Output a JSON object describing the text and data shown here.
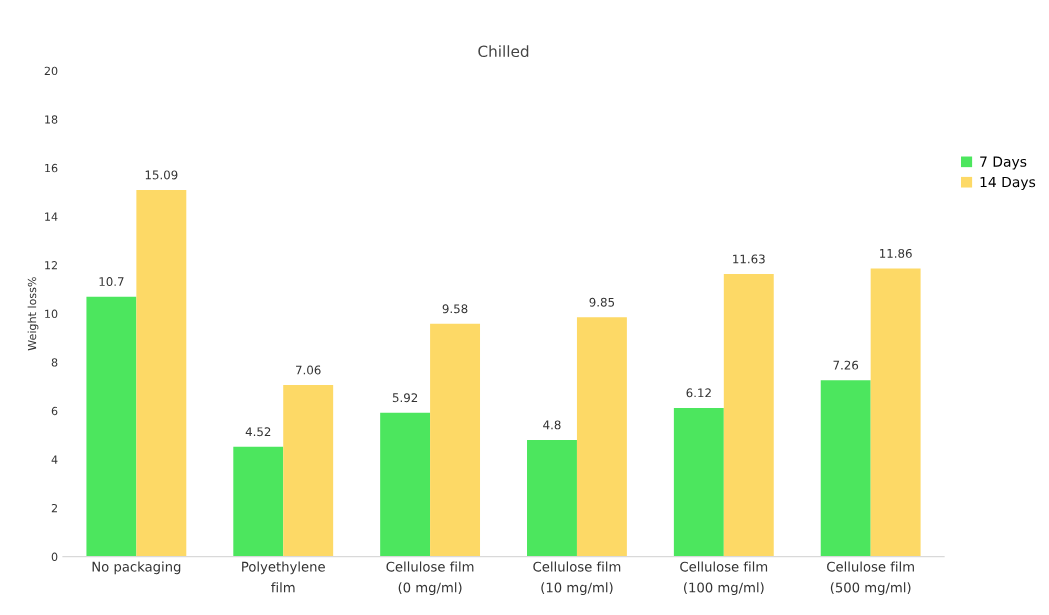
{
  "chart_data": {
    "type": "bar",
    "title": "Chilled",
    "ylabel": "Weight loss%",
    "categories": [
      "No packaging",
      "Polyethylene film",
      "Cellulose film (0 mg/ml)",
      "Cellulose film (10 mg/ml)",
      "Cellulose film (100 mg/ml)",
      "Cellulose film (500 mg/ml)"
    ],
    "series": [
      {
        "name": "7 Days",
        "color": "#4ce65e",
        "values": [
          10.7,
          4.52,
          5.92,
          4.8,
          6.12,
          7.26
        ]
      },
      {
        "name": "14 Days",
        "color": "#fdd966",
        "values": [
          15.09,
          7.06,
          9.58,
          9.85,
          11.63,
          11.86
        ]
      }
    ],
    "ylim": [
      0,
      20
    ],
    "yticks": [
      0,
      2,
      4,
      6,
      8,
      10,
      12,
      14,
      16,
      18,
      20
    ],
    "grid": false,
    "legend": "right",
    "data_labels": true
  }
}
